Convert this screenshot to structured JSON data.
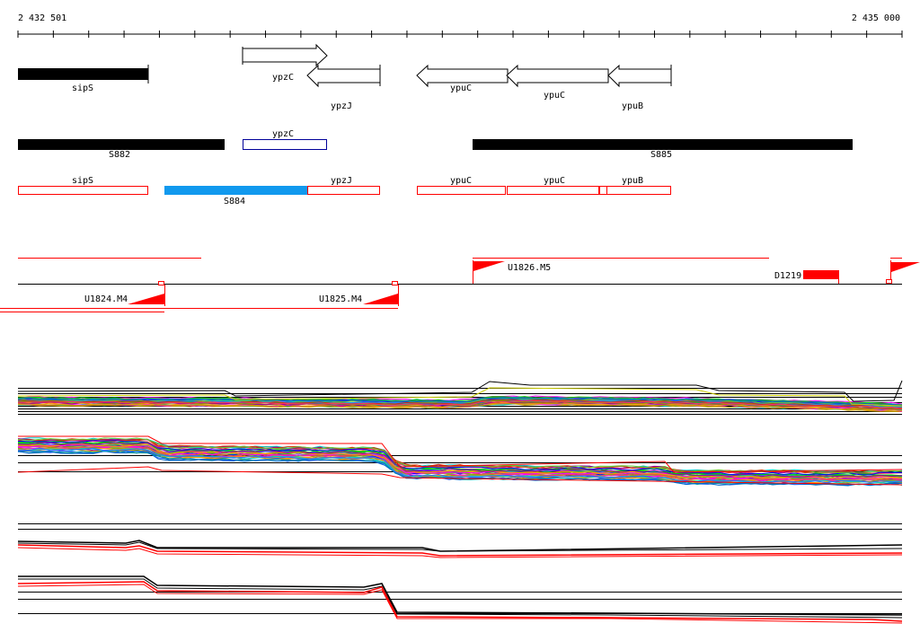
{
  "ruler": {
    "start_label": "2 432 501",
    "end_label": "2 435 000"
  },
  "colors": {
    "black": "#000000",
    "red": "#ff0000",
    "blue": "#1199ee",
    "navy": "#000099",
    "white": "#ffffff",
    "trace_palette": [
      "#ff00ff",
      "#00cc00",
      "#0000ff",
      "#ff9900",
      "#00cccc",
      "#990099",
      "#66cc33",
      "#3366ff",
      "#cc3300",
      "#999900",
      "#009999",
      "#ff3366",
      "#33aa33",
      "#0066cc",
      "#cc9900"
    ]
  },
  "genes": {
    "sipS": "sipS",
    "ypzC": "ypzC",
    "ypzJ": "ypzJ",
    "ypuC_1": "ypuC",
    "ypuC_2": "ypuC",
    "ypuB": "ypuB"
  },
  "segments": {
    "S882": "S882",
    "S885": "S885",
    "S884": "S884"
  },
  "cds_track": {
    "sipS": "sipS",
    "ypzJ": "ypzJ",
    "ypuC_1": "ypuC",
    "ypuC_2": "ypuC",
    "ypuB": "ypuB",
    "ypzC_box": "ypzC"
  },
  "features": {
    "U1824": "U1824.M4",
    "U1825": "U1825.M4",
    "U1826": "U1826.M5",
    "D1219": "D1219"
  }
}
